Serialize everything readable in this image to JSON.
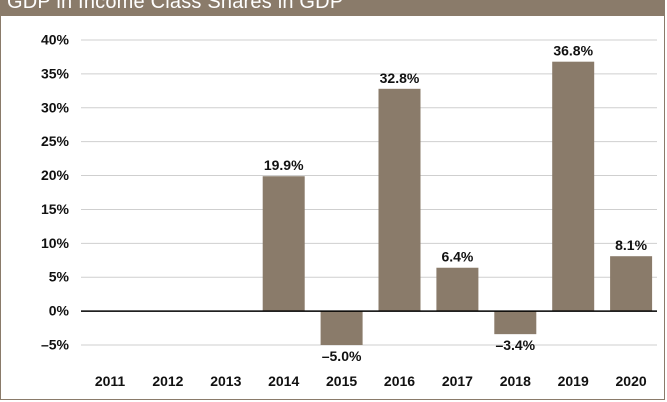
{
  "chart_data": {
    "type": "bar",
    "title": "GDP in Income Class Shares in GDP",
    "categories": [
      "2011",
      "2012",
      "2013",
      "2014",
      "2015",
      "2016",
      "2017",
      "2018",
      "2019",
      "2020"
    ],
    "values": [
      null,
      null,
      null,
      19.9,
      -5.0,
      32.8,
      6.4,
      -3.4,
      36.8,
      8.1
    ],
    "data_labels": [
      "",
      "",
      "",
      "19.9%",
      "–5.0%",
      "32.8%",
      "6.4%",
      "–3.4%",
      "36.8%",
      "8.1%"
    ],
    "y_ticks": [
      40,
      35,
      30,
      25,
      20,
      15,
      10,
      5,
      0,
      -5
    ],
    "y_tick_labels": [
      "40%",
      "35%",
      "30%",
      "25%",
      "20%",
      "15%",
      "10%",
      "5%",
      "0%",
      "–5%"
    ],
    "ylim": [
      -5,
      40
    ],
    "xlabel": "",
    "ylabel": "",
    "grid": true,
    "colors": {
      "bar": "#8a7b6a",
      "grid": "#cfcfcf",
      "zero_line": "#000000",
      "frame": "#8a7b6a",
      "text": "#111111"
    }
  }
}
